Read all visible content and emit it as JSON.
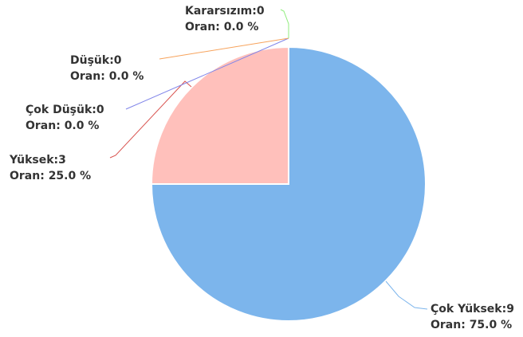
{
  "chart_data": {
    "type": "pie",
    "categories": [
      "Çok Yüksek",
      "Yüksek",
      "Çok Düşük",
      "Düşük",
      "Kararsızım"
    ],
    "values": [
      9,
      3,
      0,
      0,
      0
    ],
    "value_labels": [
      "Çok Yüksek:9",
      "Yüksek:3",
      "Çok Düşük:0",
      "Düşük:0",
      "Kararsızım:0"
    ],
    "shares": [
      75.0,
      25.0,
      0.0,
      0.0,
      0.0
    ],
    "share_labels": [
      "Oran: 75.0 %",
      "Oran: 25.0 %",
      "Oran: 0.0 %",
      "Oran: 0.0 %",
      "Oran: 0.0 %"
    ],
    "colors": [
      "#7cb5ec",
      "#ffc0bb",
      "#8085e9",
      "#f7a35c",
      "#90ed7d"
    ],
    "connector_colors": [
      "#7cb5ec",
      "#d9534f",
      "#8085e9",
      "#f7a35c",
      "#90ed7d"
    ]
  }
}
